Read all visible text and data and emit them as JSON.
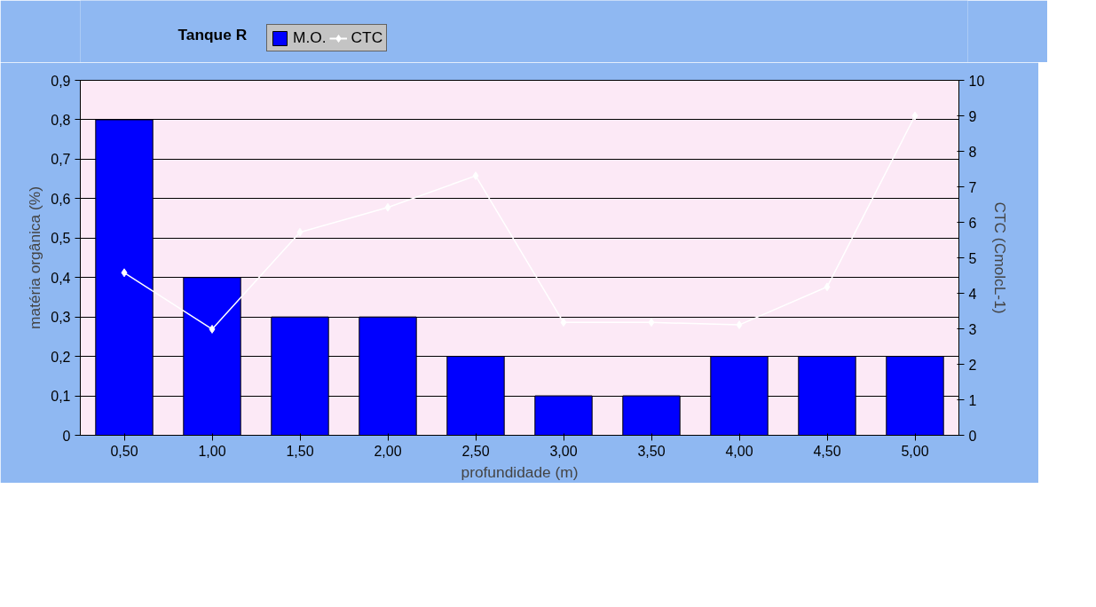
{
  "chart_data": {
    "type": "bar",
    "title": "Tanque R",
    "xlabel": "profundidade (m)",
    "ylabel": "matéria orgânica (%)",
    "y2label": "CTC (CmolcL-1)",
    "categories": [
      "0,50",
      "1,00",
      "1,50",
      "2,00",
      "2,50",
      "3,00",
      "3,50",
      "4,00",
      "4,50",
      "5,00"
    ],
    "series": [
      {
        "name": "M.O.",
        "color": "#0000ff",
        "values": [
          0.8,
          0.4,
          0.3,
          0.3,
          0.2,
          0.1,
          0.1,
          0.2,
          0.2,
          0.2
        ]
      },
      {
        "name": "CTC",
        "type": "line",
        "axis": "y2",
        "color": "#ffffff",
        "marker": "diamond",
        "values": [
          4.58,
          2.99,
          5.72,
          6.42,
          7.31,
          3.18,
          3.18,
          3.11,
          4.18,
          9.0
        ]
      }
    ],
    "ylim": [
      0,
      0.9
    ],
    "yticks": [
      {
        "value": 0,
        "label": "0"
      },
      {
        "value": 0.1,
        "label": "0,1"
      },
      {
        "value": 0.2,
        "label": "0,2"
      },
      {
        "value": 0.3,
        "label": "0,3"
      },
      {
        "value": 0.4,
        "label": "0,4"
      },
      {
        "value": 0.5,
        "label": "0,5"
      },
      {
        "value": 0.6,
        "label": "0,6"
      },
      {
        "value": 0.7,
        "label": "0,7"
      },
      {
        "value": 0.8,
        "label": "0,8"
      },
      {
        "value": 0.9,
        "label": "0,9"
      }
    ],
    "y2lim": [
      0,
      10
    ],
    "y2ticks": [
      0,
      1,
      2,
      3,
      4,
      5,
      6,
      7,
      8,
      9,
      10
    ],
    "grid": "y",
    "legend": "top left"
  }
}
